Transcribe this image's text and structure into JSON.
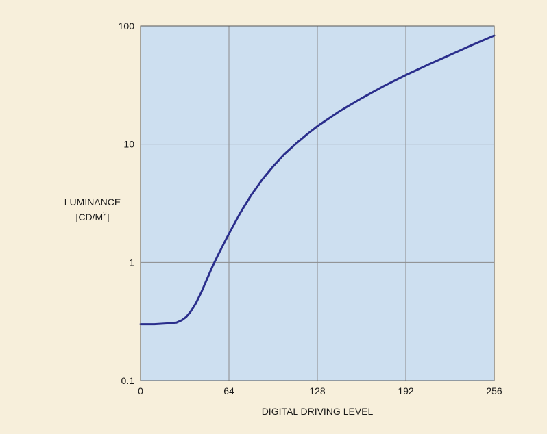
{
  "chart_data": {
    "type": "line",
    "xlabel": "DIGITAL DRIVING LEVEL",
    "ylabel_line1": "LUMINANCE",
    "ylabel_line2_prefix": "[CD/M",
    "ylabel_line2_sup": "2",
    "ylabel_line2_suffix": "]",
    "xlim": [
      0,
      256
    ],
    "ylim": [
      0.1,
      100
    ],
    "yscale": "log",
    "grid": true,
    "x_ticks": [
      0,
      64,
      128,
      192,
      256
    ],
    "x_tick_labels": [
      "0",
      "64",
      "128",
      "192",
      "256"
    ],
    "y_ticks": [
      0.1,
      1,
      10,
      100
    ],
    "y_tick_labels": [
      "0.1",
      "1",
      "10",
      "100"
    ],
    "series": [
      {
        "color": "#2a2e8c",
        "x": [
          0,
          10,
          20,
          26,
          30,
          33,
          36,
          40,
          44,
          48,
          52,
          56,
          60,
          64,
          72,
          80,
          88,
          96,
          104,
          112,
          120,
          128,
          144,
          160,
          176,
          192,
          208,
          224,
          240,
          256
        ],
        "y": [
          0.3,
          0.3,
          0.305,
          0.31,
          0.325,
          0.345,
          0.38,
          0.45,
          0.56,
          0.72,
          0.92,
          1.15,
          1.42,
          1.75,
          2.6,
          3.7,
          5.0,
          6.5,
          8.2,
          10.0,
          12.0,
          14.2,
          19.0,
          24.5,
          31.0,
          38.5,
          47.0,
          57.0,
          69.0,
          83.0
        ]
      }
    ]
  }
}
